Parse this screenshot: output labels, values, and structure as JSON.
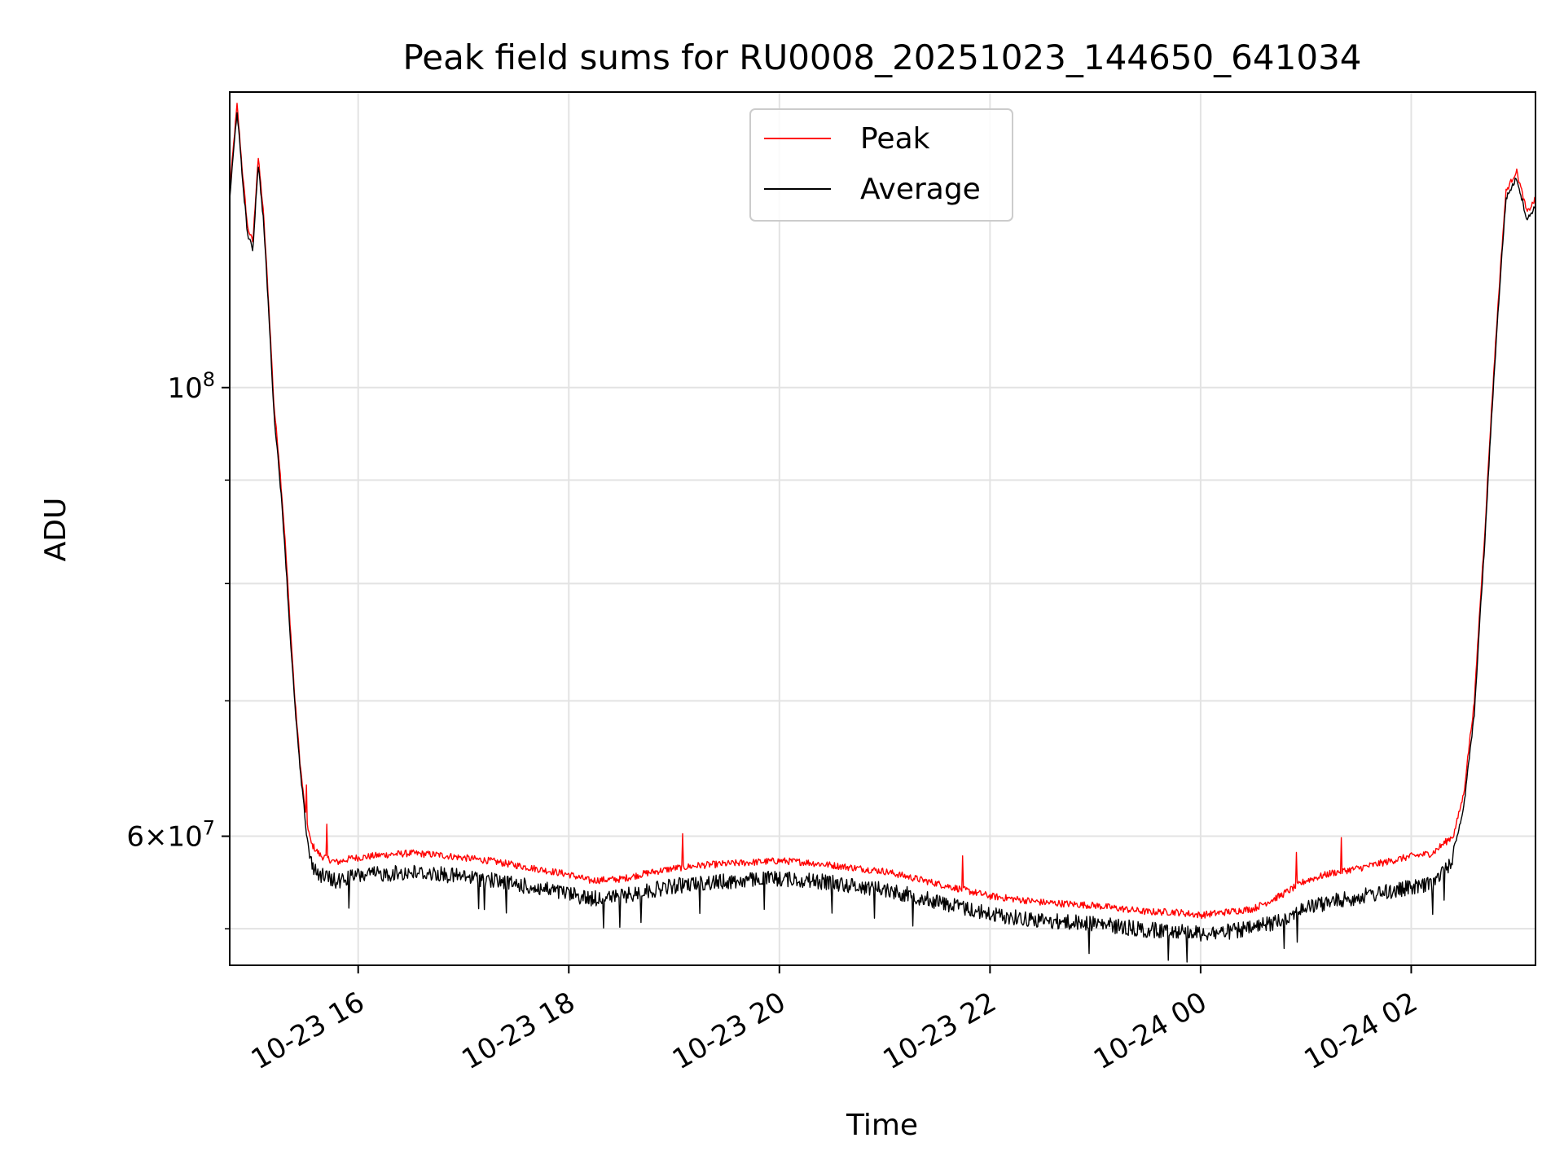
{
  "chart_data": {
    "type": "line",
    "title": "Peak field sums for RU0008_20251023_144650_641034",
    "xlabel": "Time",
    "ylabel": "ADU",
    "yscale": "log",
    "xlim_hours": [
      -1.22,
      11.18
    ],
    "ylim": [
      51800000,
      140000000
    ],
    "grid": true,
    "legend_position": "upper center",
    "x_ticks": [
      {
        "hours": 0,
        "label": "10-23 16"
      },
      {
        "hours": 2,
        "label": "10-23 18"
      },
      {
        "hours": 4,
        "label": "10-23 20"
      },
      {
        "hours": 6,
        "label": "10-23 22"
      },
      {
        "hours": 8,
        "label": "10-24 00"
      },
      {
        "hours": 10,
        "label": "10-24 02"
      }
    ],
    "y_ticks_major": [
      {
        "value": 100000000,
        "base": "10",
        "exp": "8"
      },
      {
        "value": 60000000,
        "base": "6×10",
        "exp": "7"
      }
    ],
    "y_ticks_minor": [
      54000000,
      70000000,
      80000000,
      90000000
    ],
    "x_hours": [
      -1.22,
      -1.15,
      -1.1,
      -1.05,
      -1.0,
      -0.95,
      -0.9,
      -0.85,
      -0.8,
      -0.75,
      -0.7,
      -0.65,
      -0.6,
      -0.55,
      -0.5,
      -0.45,
      -0.4,
      -0.35,
      -0.3,
      -0.25,
      -0.2,
      -0.15,
      -0.1,
      -0.05,
      0.0,
      0.25,
      0.5,
      0.75,
      1.0,
      1.25,
      1.5,
      1.75,
      2.0,
      2.2,
      2.5,
      2.75,
      3.0,
      3.25,
      3.5,
      3.75,
      4.0,
      4.25,
      4.5,
      4.75,
      5.0,
      5.25,
      5.5,
      5.75,
      6.0,
      6.25,
      6.5,
      6.75,
      7.0,
      7.25,
      7.5,
      7.75,
      8.0,
      8.25,
      8.5,
      8.75,
      9.0,
      9.25,
      9.5,
      9.75,
      10.0,
      10.2,
      10.4,
      10.5,
      10.6,
      10.7,
      10.8,
      10.9,
      11.0,
      11.1,
      11.18
    ],
    "series": [
      {
        "name": "Peak",
        "color": "#ff0000",
        "values": [
          125000000,
          138000000,
          128000000,
          120000000,
          118000000,
          130000000,
          122000000,
          110000000,
          98000000,
          92000000,
          85000000,
          77000000,
          70000000,
          65000000,
          61500000,
          59500000,
          59000000,
          58600000,
          58500000,
          58300000,
          58200000,
          58300000,
          58400000,
          58500000,
          58500000,
          58700000,
          58800000,
          58700000,
          58500000,
          58300000,
          58000000,
          57700000,
          57400000,
          57000000,
          57100000,
          57500000,
          57800000,
          58000000,
          58100000,
          58200000,
          58300000,
          58200000,
          58000000,
          57800000,
          57600000,
          57200000,
          56800000,
          56400000,
          56000000,
          55800000,
          55600000,
          55500000,
          55400000,
          55200000,
          55000000,
          55000000,
          54800000,
          55000000,
          55200000,
          56000000,
          57000000,
          57500000,
          57800000,
          58200000,
          58600000,
          58800000,
          60000000,
          63000000,
          70000000,
          85000000,
          105000000,
          125000000,
          128000000,
          122000000,
          124000000
        ]
      },
      {
        "name": "Average",
        "color": "#000000",
        "values": [
          124000000,
          137000000,
          127000000,
          119000000,
          117000000,
          129000000,
          121000000,
          109000000,
          97000000,
          91000000,
          84000000,
          76000000,
          69500000,
          64500000,
          61000000,
          58800000,
          58200000,
          57900000,
          57800000,
          57600000,
          57500000,
          57600000,
          57700000,
          57800000,
          57900000,
          58000000,
          58100000,
          58000000,
          57800000,
          57600000,
          57300000,
          57000000,
          56700000,
          56400000,
          56500000,
          56900000,
          57200000,
          57400000,
          57500000,
          57600000,
          57700000,
          57600000,
          57400000,
          57200000,
          57000000,
          56600000,
          56200000,
          55800000,
          55400000,
          55200000,
          55000000,
          54900000,
          54800000,
          54600000,
          54400000,
          54400000,
          54200000,
          54300000,
          54500000,
          55000000,
          55800000,
          56200000,
          56500000,
          56800000,
          57100000,
          57300000,
          59000000,
          62000000,
          69000000,
          84000000,
          104000000,
          124000000,
          127000000,
          121000000,
          123000000
        ]
      }
    ]
  }
}
